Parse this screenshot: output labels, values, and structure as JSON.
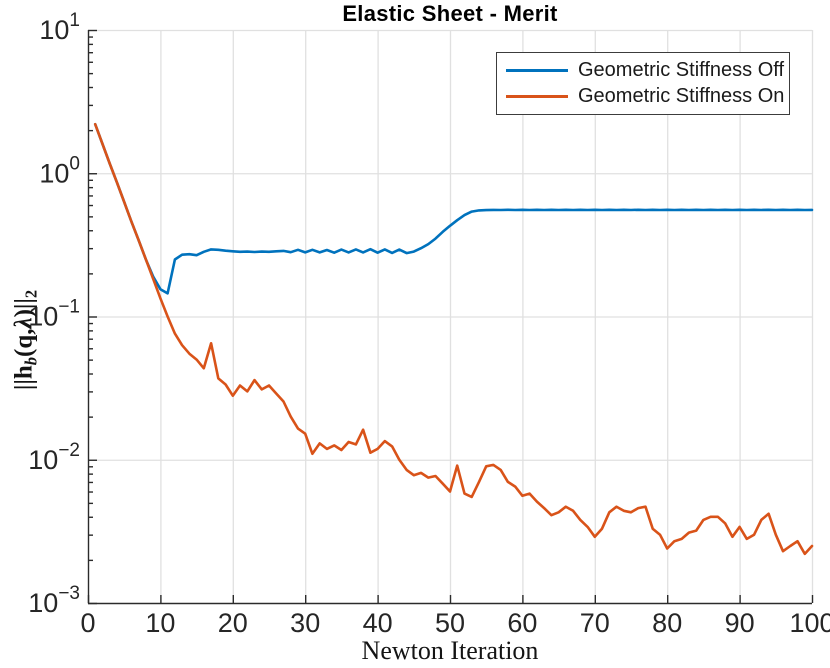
{
  "chart_data": {
    "type": "line",
    "title": "Elastic Sheet - Merit",
    "xlabel": "Newton Iteration",
    "ylabel": "||h_b(q, λ)||_2",
    "ylabel_segments": [
      {
        "t": "||h"
      },
      {
        "t": "b",
        "sub": true,
        "italic": true
      },
      {
        "t": "(q,"
      },
      {
        "t": "λ",
        "italic": true
      },
      {
        "t": ")||"
      },
      {
        "t": "2",
        "sub": true
      }
    ],
    "x_axis": {
      "min": 0,
      "max": 100,
      "ticks": [
        0,
        10,
        20,
        30,
        40,
        50,
        60,
        70,
        80,
        90,
        100
      ]
    },
    "y_axis": {
      "scale": "log",
      "min_exp": -3,
      "max_exp": 1,
      "tick_exponents": [
        1,
        0,
        -1,
        -2,
        -3
      ]
    },
    "grid": true,
    "legend": {
      "position": "northeast"
    },
    "colors": {
      "series_off": "#0072BD",
      "series_on": "#D95319",
      "grid": "#E0E0E0",
      "axis": "#2B2B2B",
      "tick_label": "#262626"
    },
    "x": [
      1,
      2,
      3,
      4,
      5,
      6,
      7,
      8,
      9,
      10,
      11,
      12,
      13,
      14,
      15,
      16,
      17,
      18,
      19,
      20,
      21,
      22,
      23,
      24,
      25,
      26,
      27,
      28,
      29,
      30,
      31,
      32,
      33,
      34,
      35,
      36,
      37,
      38,
      39,
      40,
      41,
      42,
      43,
      44,
      45,
      46,
      47,
      48,
      49,
      50,
      51,
      52,
      53,
      54,
      55,
      56,
      57,
      58,
      59,
      60,
      61,
      62,
      63,
      64,
      65,
      66,
      67,
      68,
      69,
      70,
      71,
      72,
      73,
      74,
      75,
      76,
      77,
      78,
      79,
      80,
      81,
      82,
      83,
      84,
      85,
      86,
      87,
      88,
      89,
      90,
      91,
      92,
      93,
      94,
      95,
      96,
      97,
      98,
      99,
      100
    ],
    "series": [
      {
        "name": "Geometric Stiffness Off",
        "color": "#0072BD",
        "y": [
          2.2,
          1.6,
          1.17,
          0.86,
          0.63,
          0.46,
          0.34,
          0.25,
          0.19,
          0.155,
          0.145,
          0.25,
          0.27,
          0.272,
          0.268,
          0.283,
          0.294,
          0.292,
          0.288,
          0.285,
          0.283,
          0.284,
          0.282,
          0.284,
          0.283,
          0.285,
          0.287,
          0.281,
          0.292,
          0.28,
          0.292,
          0.28,
          0.291,
          0.279,
          0.293,
          0.28,
          0.294,
          0.28,
          0.295,
          0.279,
          0.294,
          0.278,
          0.293,
          0.277,
          0.284,
          0.3,
          0.32,
          0.35,
          0.39,
          0.43,
          0.47,
          0.51,
          0.54,
          0.55,
          0.553,
          0.555,
          0.554,
          0.556,
          0.554,
          0.556,
          0.554,
          0.556,
          0.554,
          0.556,
          0.554,
          0.556,
          0.554,
          0.556,
          0.554,
          0.556,
          0.554,
          0.556,
          0.554,
          0.556,
          0.554,
          0.556,
          0.554,
          0.556,
          0.554,
          0.556,
          0.554,
          0.556,
          0.554,
          0.556,
          0.554,
          0.556,
          0.554,
          0.556,
          0.554,
          0.556,
          0.554,
          0.556,
          0.554,
          0.556,
          0.554,
          0.556,
          0.554,
          0.556,
          0.554,
          0.555
        ]
      },
      {
        "name": "Geometric Stiffness On",
        "color": "#D95319",
        "y": [
          2.2,
          1.6,
          1.17,
          0.86,
          0.63,
          0.46,
          0.34,
          0.25,
          0.183,
          0.134,
          0.1,
          0.076,
          0.063,
          0.055,
          0.05,
          0.0435,
          0.065,
          0.037,
          0.0335,
          0.028,
          0.033,
          0.03,
          0.036,
          0.031,
          0.033,
          0.029,
          0.0255,
          0.02,
          0.0165,
          0.0152,
          0.011,
          0.013,
          0.0119,
          0.0126,
          0.0117,
          0.0133,
          0.0128,
          0.0162,
          0.0112,
          0.0119,
          0.0135,
          0.0124,
          0.01,
          0.0085,
          0.0078,
          0.0081,
          0.0075,
          0.0077,
          0.0068,
          0.006,
          0.0091,
          0.0058,
          0.0055,
          0.007,
          0.009,
          0.0092,
          0.0085,
          0.007,
          0.0065,
          0.0056,
          0.0058,
          0.0051,
          0.0046,
          0.0041,
          0.0043,
          0.0047,
          0.0044,
          0.0038,
          0.0034,
          0.0029,
          0.0033,
          0.0043,
          0.0047,
          0.0044,
          0.0043,
          0.0046,
          0.0047,
          0.0033,
          0.003,
          0.0024,
          0.0027,
          0.0028,
          0.0031,
          0.0032,
          0.0038,
          0.004,
          0.004,
          0.0036,
          0.0029,
          0.0034,
          0.0028,
          0.003,
          0.0038,
          0.0042,
          0.003,
          0.0023,
          0.0025,
          0.0027,
          0.0022,
          0.0025
        ]
      }
    ]
  }
}
